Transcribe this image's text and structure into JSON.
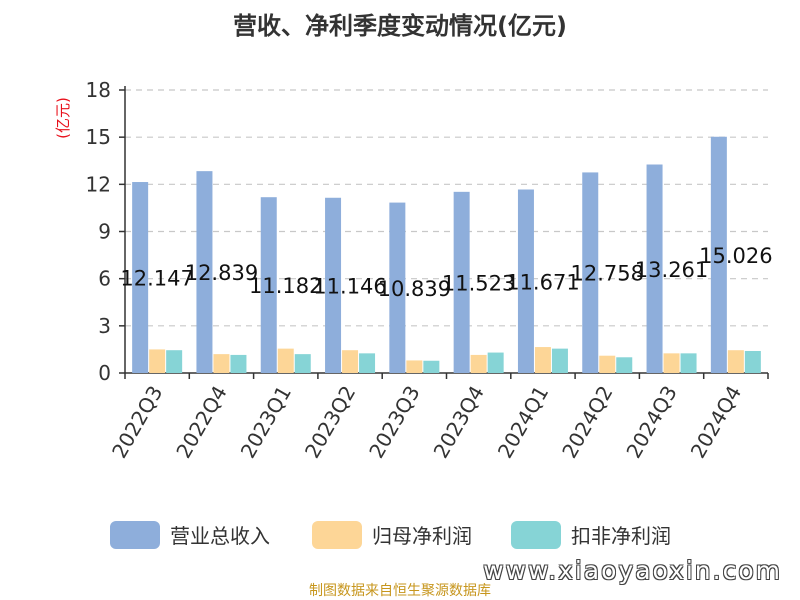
{
  "chart_data": {
    "type": "bar",
    "title": "营收、净利季度变动情况(亿元)",
    "ylabel": "(亿元)",
    "xlabel": "",
    "ylim": [
      0,
      18
    ],
    "yticks": [
      0,
      3,
      6,
      9,
      12,
      15,
      18
    ],
    "grid": true,
    "legend_position": "bottom",
    "categories": [
      "2022Q3",
      "2022Q4",
      "2023Q1",
      "2023Q2",
      "2023Q3",
      "2023Q4",
      "2024Q1",
      "2024Q2",
      "2024Q3",
      "2024Q4"
    ],
    "series": [
      {
        "name": "营业总收入",
        "color": "#8eaedb",
        "values": [
          12.147,
          12.839,
          11.182,
          11.146,
          10.839,
          11.523,
          11.671,
          12.758,
          13.261,
          15.026
        ],
        "labels": [
          "12.147",
          "12.839",
          "11.182",
          "11.146",
          "10.839",
          "11.523",
          "11.671",
          "12.758",
          "13.261",
          "15.026"
        ]
      },
      {
        "name": "归母净利润",
        "color": "#fdd697",
        "values": [
          1.5,
          1.2,
          1.55,
          1.45,
          0.8,
          1.15,
          1.65,
          1.1,
          1.25,
          1.45
        ]
      },
      {
        "name": "扣非净利润",
        "color": "#86d4d6",
        "values": [
          1.45,
          1.15,
          1.2,
          1.25,
          0.78,
          1.3,
          1.55,
          1.0,
          1.25,
          1.4
        ]
      }
    ]
  },
  "footer": {
    "source": "制图数据来自恒生聚源数据库",
    "watermark": "www.xiaoyaoxin.com"
  }
}
